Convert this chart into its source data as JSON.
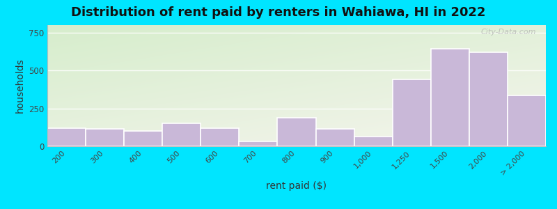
{
  "categories": [
    "200",
    "300",
    "400",
    "500",
    "600",
    "700",
    "800",
    "900",
    "1,000",
    "1,250",
    "1,500",
    "2,000",
    "> 2,000"
  ],
  "values": [
    120,
    115,
    100,
    150,
    120,
    30,
    190,
    115,
    65,
    440,
    645,
    620,
    335
  ],
  "bar_color": "#c9b8d8",
  "bar_edge_color": "#ffffff",
  "title": "Distribution of rent paid by renters in Wahiawa, HI in 2022",
  "xlabel": "rent paid ($)",
  "ylabel": "households",
  "ylim": [
    0,
    800
  ],
  "yticks": [
    0,
    250,
    500,
    750
  ],
  "background_color_topleft": "#d8ecd0",
  "background_color_bottomright": "#f0f0e8",
  "outer_bg": "#00e5ff",
  "title_fontsize": 13,
  "axis_label_fontsize": 10,
  "watermark": "City-Data.com",
  "n_bars": 13
}
